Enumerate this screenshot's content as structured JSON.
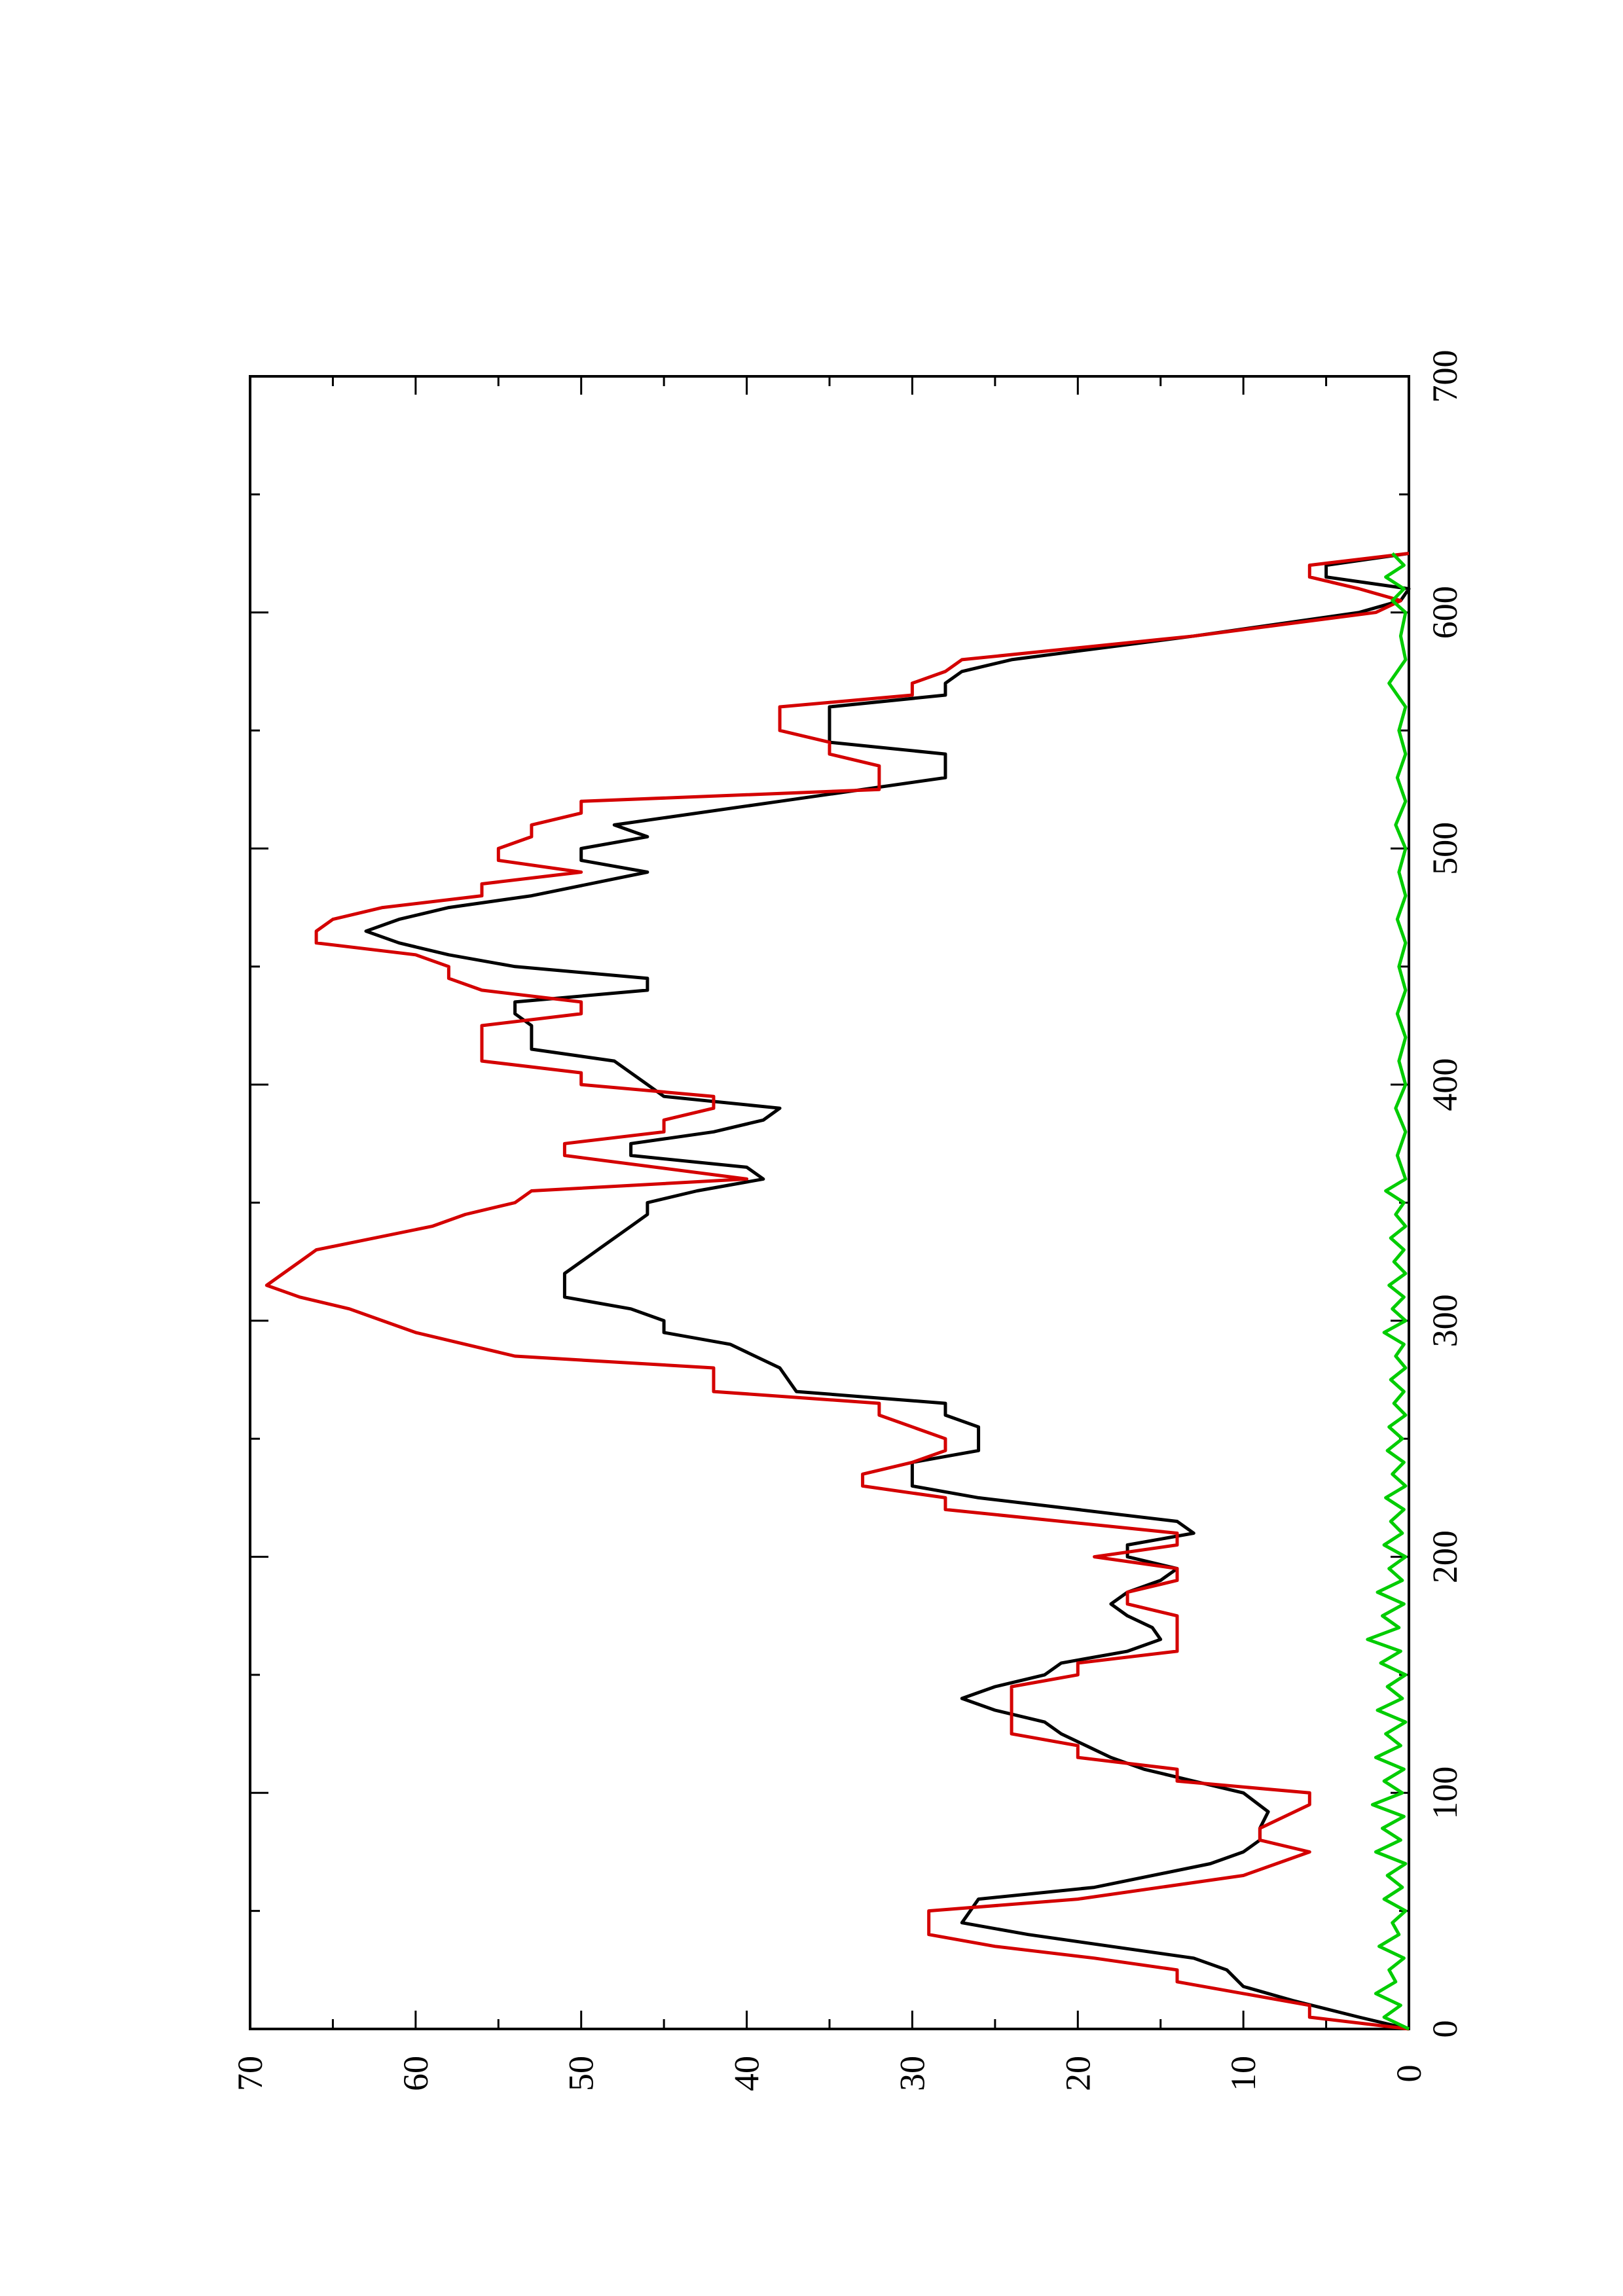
{
  "chart_data": {
    "type": "line",
    "orientation": "rotated 90 degrees counter-clockwise",
    "title": "",
    "xlabel": "",
    "ylabel": "",
    "xlim": [
      0,
      700
    ],
    "ylim": [
      0,
      70
    ],
    "x_ticks": [
      "0",
      "100",
      "200",
      "300",
      "400",
      "500",
      "600",
      "700"
    ],
    "y_ticks": [
      "0",
      "10",
      "20",
      "30",
      "40",
      "50",
      "60",
      "70"
    ],
    "grid": false,
    "legend": "none",
    "series": [
      {
        "color": "#000000",
        "points": [
          [
            0,
            0
          ],
          [
            5,
            3
          ],
          [
            12,
            7
          ],
          [
            18,
            10
          ],
          [
            25,
            11
          ],
          [
            30,
            13
          ],
          [
            35,
            18
          ],
          [
            40,
            23
          ],
          [
            45,
            27
          ],
          [
            55,
            26
          ],
          [
            60,
            19
          ],
          [
            70,
            12
          ],
          [
            75,
            10
          ],
          [
            80,
            9
          ],
          [
            85,
            9
          ],
          [
            92,
            8.5
          ],
          [
            100,
            10
          ],
          [
            105,
            13
          ],
          [
            110,
            16
          ],
          [
            115,
            18
          ],
          [
            125,
            21
          ],
          [
            130,
            22
          ],
          [
            135,
            25
          ],
          [
            140,
            27
          ],
          [
            145,
            25
          ],
          [
            150,
            22
          ],
          [
            155,
            21
          ],
          [
            160,
            17
          ],
          [
            165,
            15
          ],
          [
            170,
            15.5
          ],
          [
            175,
            17
          ],
          [
            180,
            18
          ],
          [
            185,
            17
          ],
          [
            190,
            15
          ],
          [
            195,
            14
          ],
          [
            200,
            17
          ],
          [
            205,
            17
          ],
          [
            210,
            13
          ],
          [
            215,
            14
          ],
          [
            220,
            20
          ],
          [
            225,
            26
          ],
          [
            230,
            30
          ],
          [
            240,
            30
          ],
          [
            245,
            26
          ],
          [
            255,
            26
          ],
          [
            260,
            28
          ],
          [
            265,
            28
          ],
          [
            270,
            37
          ],
          [
            280,
            38
          ],
          [
            290,
            41
          ],
          [
            295,
            45
          ],
          [
            300,
            45
          ],
          [
            305,
            47
          ],
          [
            310,
            51
          ],
          [
            315,
            51
          ],
          [
            320,
            51
          ],
          [
            325,
            50
          ],
          [
            330,
            49
          ],
          [
            340,
            47
          ],
          [
            345,
            46
          ],
          [
            350,
            46
          ],
          [
            355,
            43
          ],
          [
            360,
            39
          ],
          [
            365,
            40
          ],
          [
            370,
            47
          ],
          [
            375,
            47
          ],
          [
            380,
            42
          ],
          [
            385,
            39
          ],
          [
            390,
            38
          ],
          [
            395,
            45
          ],
          [
            400,
            46
          ],
          [
            405,
            47
          ],
          [
            410,
            48
          ],
          [
            415,
            53
          ],
          [
            420,
            53
          ],
          [
            425,
            53
          ],
          [
            430,
            54
          ],
          [
            435,
            54
          ],
          [
            440,
            46
          ],
          [
            445,
            46
          ],
          [
            450,
            54
          ],
          [
            455,
            58
          ],
          [
            460,
            61
          ],
          [
            465,
            63
          ],
          [
            470,
            61
          ],
          [
            475,
            58
          ],
          [
            480,
            53
          ],
          [
            490,
            46
          ],
          [
            495,
            50
          ],
          [
            500,
            50
          ],
          [
            505,
            46
          ],
          [
            510,
            48
          ],
          [
            520,
            38
          ],
          [
            530,
            28
          ],
          [
            540,
            28
          ],
          [
            545,
            35
          ],
          [
            550,
            35
          ],
          [
            560,
            35
          ],
          [
            565,
            28
          ],
          [
            570,
            28
          ],
          [
            575,
            27
          ],
          [
            580,
            24
          ],
          [
            590,
            13
          ],
          [
            600,
            3
          ],
          [
            605,
            0.5
          ],
          [
            610,
            0
          ],
          [
            615,
            5
          ],
          [
            620,
            5
          ],
          [
            625,
            0
          ]
        ]
      },
      {
        "color": "#d40000",
        "points": [
          [
            0,
            0
          ],
          [
            5,
            6
          ],
          [
            10,
            6
          ],
          [
            15,
            10
          ],
          [
            20,
            14
          ],
          [
            25,
            14
          ],
          [
            30,
            19
          ],
          [
            35,
            25
          ],
          [
            40,
            29
          ],
          [
            50,
            29
          ],
          [
            55,
            20
          ],
          [
            65,
            10
          ],
          [
            70,
            8
          ],
          [
            75,
            6
          ],
          [
            80,
            9
          ],
          [
            85,
            9
          ],
          [
            95,
            6
          ],
          [
            100,
            6
          ],
          [
            105,
            14
          ],
          [
            110,
            14
          ],
          [
            115,
            20
          ],
          [
            120,
            20
          ],
          [
            125,
            24
          ],
          [
            145,
            24
          ],
          [
            150,
            20
          ],
          [
            155,
            20
          ],
          [
            160,
            14
          ],
          [
            165,
            14
          ],
          [
            170,
            14
          ],
          [
            175,
            14
          ],
          [
            180,
            17
          ],
          [
            185,
            17
          ],
          [
            190,
            14
          ],
          [
            195,
            14
          ],
          [
            200,
            19
          ],
          [
            205,
            14
          ],
          [
            210,
            14
          ],
          [
            220,
            28
          ],
          [
            225,
            28
          ],
          [
            230,
            33
          ],
          [
            235,
            33
          ],
          [
            240,
            30
          ],
          [
            245,
            28
          ],
          [
            250,
            28
          ],
          [
            260,
            32
          ],
          [
            265,
            32
          ],
          [
            270,
            42
          ],
          [
            280,
            42
          ],
          [
            285,
            54
          ],
          [
            290,
            57
          ],
          [
            295,
            60
          ],
          [
            300,
            62
          ],
          [
            305,
            64
          ],
          [
            310,
            67
          ],
          [
            315,
            69
          ],
          [
            320,
            68
          ],
          [
            325,
            67
          ],
          [
            330,
            66
          ],
          [
            340,
            59
          ],
          [
            345,
            57
          ],
          [
            350,
            54
          ],
          [
            355,
            53
          ],
          [
            360,
            40
          ],
          [
            370,
            51
          ],
          [
            375,
            51
          ],
          [
            380,
            45
          ],
          [
            385,
            45
          ],
          [
            390,
            42
          ],
          [
            395,
            42
          ],
          [
            400,
            50
          ],
          [
            405,
            50
          ],
          [
            410,
            56
          ],
          [
            415,
            56
          ],
          [
            425,
            56
          ],
          [
            430,
            50
          ],
          [
            435,
            50
          ],
          [
            440,
            56
          ],
          [
            445,
            58
          ],
          [
            450,
            58
          ],
          [
            455,
            60
          ],
          [
            460,
            66
          ],
          [
            465,
            66
          ],
          [
            470,
            65
          ],
          [
            475,
            62
          ],
          [
            480,
            56
          ],
          [
            485,
            56
          ],
          [
            490,
            50
          ],
          [
            495,
            55
          ],
          [
            500,
            55
          ],
          [
            505,
            53
          ],
          [
            510,
            53
          ],
          [
            515,
            50
          ],
          [
            520,
            50
          ],
          [
            525,
            32
          ],
          [
            530,
            32
          ],
          [
            535,
            32
          ],
          [
            540,
            35
          ],
          [
            545,
            35
          ],
          [
            550,
            38
          ],
          [
            555,
            38
          ],
          [
            560,
            38
          ],
          [
            565,
            30
          ],
          [
            570,
            30
          ],
          [
            575,
            28
          ],
          [
            580,
            27
          ],
          [
            590,
            13
          ],
          [
            600,
            2
          ],
          [
            605,
            0.5
          ],
          [
            610,
            3
          ],
          [
            615,
            6
          ],
          [
            620,
            6
          ],
          [
            625,
            0
          ]
        ]
      },
      {
        "color": "#00cc00",
        "points": [
          [
            0,
            0
          ],
          [
            5,
            1.5
          ],
          [
            10,
            0.5
          ],
          [
            15,
            2
          ],
          [
            20,
            0.8
          ],
          [
            25,
            1.2
          ],
          [
            30,
            0.3
          ],
          [
            35,
            1.8
          ],
          [
            40,
            0.6
          ],
          [
            45,
            1
          ],
          [
            50,
            0.2
          ],
          [
            55,
            1.5
          ],
          [
            60,
            0.4
          ],
          [
            65,
            1.3
          ],
          [
            70,
            0.2
          ],
          [
            75,
            2
          ],
          [
            80,
            0.5
          ],
          [
            85,
            1.6
          ],
          [
            90,
            0.3
          ],
          [
            95,
            2.2
          ],
          [
            100,
            0.4
          ],
          [
            105,
            1.5
          ],
          [
            110,
            0.3
          ],
          [
            115,
            2
          ],
          [
            120,
            0.5
          ],
          [
            125,
            1.4
          ],
          [
            130,
            0.2
          ],
          [
            135,
            1.9
          ],
          [
            140,
            0.4
          ],
          [
            145,
            1.3
          ],
          [
            150,
            0.2
          ],
          [
            155,
            1.7
          ],
          [
            160,
            0.5
          ],
          [
            165,
            2.5
          ],
          [
            170,
            0.6
          ],
          [
            175,
            1.6
          ],
          [
            180,
            0.3
          ],
          [
            185,
            1.9
          ],
          [
            190,
            0.4
          ],
          [
            195,
            1.2
          ],
          [
            200,
            0.2
          ],
          [
            205,
            1.5
          ],
          [
            210,
            0.4
          ],
          [
            215,
            1.1
          ],
          [
            220,
            0.3
          ],
          [
            225,
            1.4
          ],
          [
            230,
            0.2
          ],
          [
            235,
            1
          ],
          [
            240,
            0.3
          ],
          [
            245,
            1.3
          ],
          [
            250,
            0.4
          ],
          [
            255,
            1.2
          ],
          [
            260,
            0.2
          ],
          [
            265,
            0.9
          ],
          [
            270,
            0.3
          ],
          [
            275,
            1.1
          ],
          [
            280,
            0.2
          ],
          [
            285,
            0.8
          ],
          [
            290,
            0.3
          ],
          [
            295,
            1.5
          ],
          [
            300,
            0.2
          ],
          [
            305,
            1
          ],
          [
            310,
            0.3
          ],
          [
            315,
            1.2
          ],
          [
            320,
            0.2
          ],
          [
            325,
            0.9
          ],
          [
            330,
            0.3
          ],
          [
            335,
            1.1
          ],
          [
            340,
            0.2
          ],
          [
            345,
            0.8
          ],
          [
            350,
            0.3
          ],
          [
            355,
            1.4
          ],
          [
            360,
            0.2
          ],
          [
            370,
            0.7
          ],
          [
            380,
            0.2
          ],
          [
            390,
            0.8
          ],
          [
            400,
            0.2
          ],
          [
            410,
            0.6
          ],
          [
            420,
            0.2
          ],
          [
            430,
            0.7
          ],
          [
            440,
            0.2
          ],
          [
            450,
            0.6
          ],
          [
            460,
            0.2
          ],
          [
            470,
            0.7
          ],
          [
            480,
            0.2
          ],
          [
            490,
            0.6
          ],
          [
            500,
            0.2
          ],
          [
            510,
            0.8
          ],
          [
            520,
            0.2
          ],
          [
            530,
            0.7
          ],
          [
            540,
            0.2
          ],
          [
            550,
            0.6
          ],
          [
            560,
            0.2
          ],
          [
            570,
            1.2
          ],
          [
            580,
            0.2
          ],
          [
            590,
            0.5
          ],
          [
            600,
            0.2
          ],
          [
            605,
            1
          ],
          [
            610,
            0.3
          ],
          [
            615,
            1.4
          ],
          [
            620,
            0.3
          ],
          [
            625,
            1
          ]
        ]
      }
    ]
  }
}
